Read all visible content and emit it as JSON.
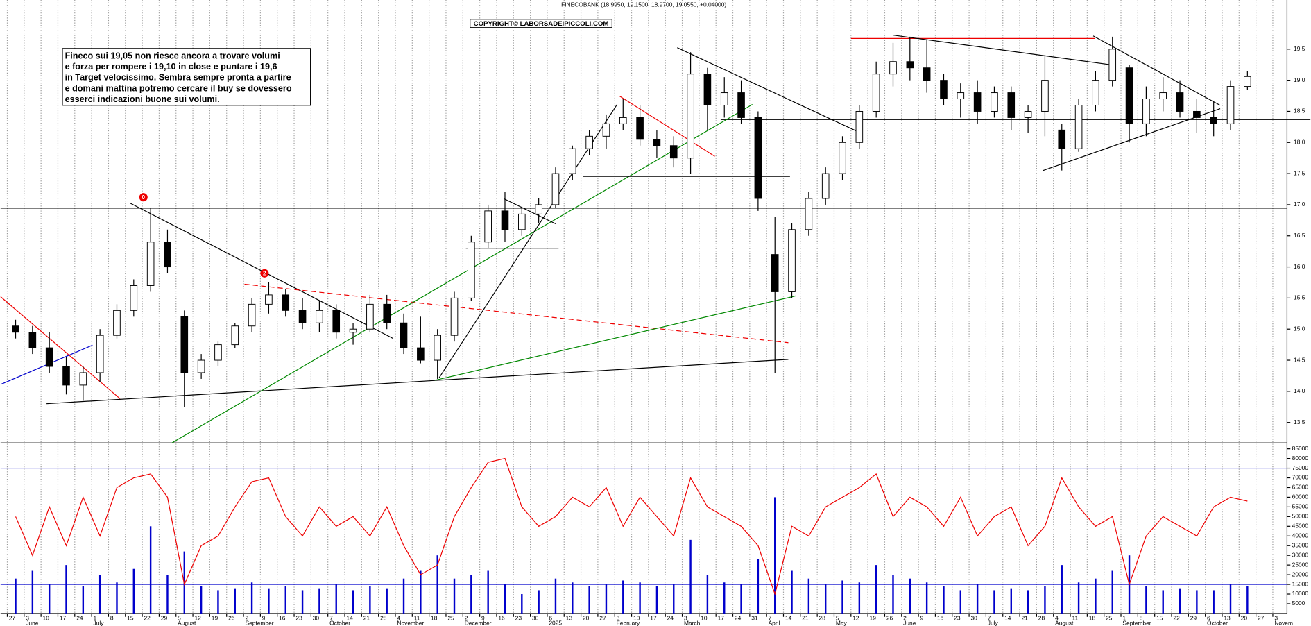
{
  "chart_data": [
    {
      "type": "candlestick",
      "title": "FINECOBANK (18.9950, 19.1500, 18.9700, 19.0550, +0.04000)",
      "watermark": "COPYRIGHT© LABORSADEIPICCOLI.COM",
      "annotation_lines": [
        "Fineco sui 19,05 non riesce ancora a trovare volumi",
        "e forza per rompere i 19,10 in close e puntare i 19,6",
        "in Target velocissimo. Sembra sempre pronta a partire",
        "e domani mattina potremo cercare il buy se dovessero",
        "esserci indicazioni buone sui volumi."
      ],
      "markers": [
        "0",
        "2"
      ],
      "categories": [
        "27",
        "3",
        "10",
        "17",
        "24",
        "1",
        "8",
        "15",
        "22",
        "29",
        "5",
        "12",
        "19",
        "26",
        "2",
        "9",
        "16",
        "23",
        "30",
        "7",
        "14",
        "21",
        "28",
        "4",
        "11",
        "18",
        "25",
        "2",
        "9",
        "16",
        "23",
        "30",
        "6",
        "13",
        "20",
        "27",
        "3",
        "10",
        "17",
        "24",
        "3",
        "10",
        "17",
        "24",
        "31",
        "7",
        "14",
        "21",
        "28",
        "5",
        "12",
        "19",
        "26",
        "2",
        "9",
        "16",
        "23",
        "30",
        "7",
        "14",
        "21",
        "28",
        "4",
        "11",
        "18",
        "25",
        "1",
        "8",
        "15",
        "22",
        "29",
        "6",
        "13",
        "20",
        "27",
        "3"
      ],
      "months": [
        null,
        "June",
        null,
        null,
        null,
        "July",
        null,
        null,
        null,
        null,
        "August",
        null,
        null,
        null,
        "September",
        null,
        null,
        null,
        null,
        "October",
        null,
        null,
        null,
        "November",
        null,
        null,
        null,
        "December",
        null,
        null,
        null,
        null,
        "2025",
        null,
        null,
        null,
        "February",
        null,
        null,
        null,
        "March",
        null,
        null,
        null,
        null,
        "April",
        null,
        null,
        null,
        "May",
        null,
        null,
        null,
        "June",
        null,
        null,
        null,
        null,
        "July",
        null,
        null,
        null,
        "August",
        null,
        null,
        null,
        "September",
        null,
        null,
        null,
        null,
        "October",
        null,
        null,
        null,
        "Novem"
      ],
      "open": [
        15.05,
        14.95,
        14.7,
        14.4,
        14.1,
        14.3,
        14.9,
        15.3,
        15.7,
        16.4,
        15.2,
        14.3,
        14.5,
        14.75,
        15.05,
        15.4,
        15.55,
        15.3,
        15.1,
        15.3,
        14.95,
        15.0,
        15.4,
        15.1,
        14.7,
        14.5,
        14.9,
        15.5,
        16.4,
        16.9,
        16.6,
        16.85,
        17.0,
        17.5,
        17.9,
        18.1,
        18.3,
        18.4,
        18.05,
        17.95,
        17.75,
        19.1,
        18.6,
        18.8,
        18.4,
        16.2,
        15.6,
        16.6,
        17.1,
        17.5,
        18.0,
        18.5,
        19.1,
        19.3,
        19.2,
        19.0,
        18.7,
        18.8,
        18.5,
        18.8,
        18.4,
        18.5,
        18.2,
        17.9,
        18.6,
        19.0,
        19.2,
        18.3,
        18.7,
        18.8,
        18.5,
        18.4,
        18.3,
        18.9,
        null,
        null
      ],
      "high": [
        15.15,
        15.05,
        14.95,
        14.55,
        14.4,
        15.0,
        15.4,
        15.8,
        16.95,
        16.6,
        15.3,
        14.6,
        14.8,
        15.1,
        15.5,
        15.75,
        15.65,
        15.5,
        15.45,
        15.4,
        15.1,
        15.55,
        15.55,
        15.25,
        15.2,
        15.0,
        15.6,
        16.5,
        17.0,
        17.2,
        16.95,
        17.1,
        17.6,
        17.95,
        18.2,
        18.45,
        18.7,
        18.6,
        18.2,
        18.1,
        19.45,
        19.2,
        19.05,
        19.0,
        18.5,
        16.8,
        16.7,
        17.2,
        17.6,
        18.1,
        18.6,
        19.3,
        19.6,
        19.7,
        19.65,
        19.1,
        18.95,
        19.0,
        18.9,
        18.9,
        18.6,
        19.4,
        18.3,
        18.7,
        19.15,
        19.7,
        19.25,
        18.9,
        19.05,
        19.0,
        18.7,
        18.65,
        19.0,
        19.15,
        null,
        null
      ],
      "low": [
        14.85,
        14.6,
        14.3,
        13.95,
        13.85,
        14.15,
        14.85,
        15.2,
        15.6,
        15.9,
        13.75,
        14.2,
        14.4,
        14.7,
        14.95,
        15.25,
        15.2,
        15.0,
        14.95,
        14.85,
        14.75,
        14.95,
        15.0,
        14.6,
        14.45,
        14.2,
        14.8,
        15.45,
        16.3,
        16.4,
        16.5,
        16.7,
        16.95,
        17.4,
        17.8,
        17.9,
        18.2,
        17.95,
        17.75,
        17.6,
        17.5,
        18.2,
        18.4,
        18.3,
        16.9,
        14.3,
        15.5,
        16.5,
        17.0,
        17.4,
        17.9,
        18.4,
        18.9,
        19.0,
        18.8,
        18.6,
        18.4,
        18.3,
        18.4,
        18.2,
        18.15,
        18.1,
        17.55,
        17.85,
        18.5,
        18.9,
        18.0,
        18.1,
        18.5,
        18.4,
        18.15,
        18.1,
        18.2,
        18.85,
        null,
        null
      ],
      "close": [
        14.95,
        14.7,
        14.4,
        14.1,
        14.3,
        14.9,
        15.3,
        15.7,
        16.4,
        16.0,
        14.3,
        14.5,
        14.75,
        15.05,
        15.4,
        15.55,
        15.3,
        15.1,
        15.3,
        14.95,
        15.0,
        15.4,
        15.1,
        14.7,
        14.5,
        14.9,
        15.5,
        16.4,
        16.9,
        16.6,
        16.85,
        17.0,
        17.5,
        17.9,
        18.1,
        18.3,
        18.4,
        18.05,
        17.95,
        17.75,
        19.1,
        18.6,
        18.8,
        18.4,
        17.1,
        15.6,
        16.6,
        17.1,
        17.5,
        18.0,
        18.5,
        19.1,
        19.3,
        19.2,
        19.0,
        18.7,
        18.8,
        18.5,
        18.8,
        18.4,
        18.5,
        19.0,
        17.9,
        18.6,
        19.0,
        19.5,
        18.3,
        18.7,
        18.8,
        18.5,
        18.4,
        18.3,
        18.9,
        19.06,
        null,
        null
      ],
      "ylim": [
        13.17,
        20.29
      ],
      "yticks": [
        13.5,
        {
          "value": 14,
          "label": "14.0"
        },
        14.5,
        {
          "value": 15,
          "label": "15.0"
        },
        15.5,
        {
          "value": 16,
          "label": "16.0"
        },
        16.5,
        {
          "value": 17,
          "label": "17.0"
        },
        17.5,
        {
          "value": 18,
          "label": "18.0"
        },
        18.5,
        {
          "value": 19,
          "label": "19.0"
        },
        19.5
      ]
    },
    {
      "type": "bar",
      "series": [
        {
          "name": "Volume",
          "color": "#0000cc",
          "values": [
            18000,
            22000,
            15000,
            25000,
            14000,
            20000,
            16000,
            23000,
            45000,
            20000,
            32000,
            14000,
            12000,
            13000,
            16000,
            13000,
            14000,
            12000,
            13000,
            15000,
            12000,
            14000,
            13000,
            18000,
            22000,
            30000,
            18000,
            20000,
            22000,
            15000,
            10000,
            12000,
            18000,
            16000,
            14000,
            15000,
            17000,
            16000,
            14000,
            15000,
            38000,
            20000,
            16000,
            15000,
            28000,
            60000,
            22000,
            18000,
            15000,
            17000,
            16000,
            25000,
            20000,
            18000,
            16000,
            14000,
            12000,
            15000,
            12000,
            13000,
            12000,
            14000,
            25000,
            16000,
            18000,
            22000,
            30000,
            14000,
            12000,
            13000,
            12000,
            12000,
            15000,
            14000,
            null,
            null
          ]
        },
        {
          "name": "Oscillator",
          "color": "#ee0000",
          "values": [
            50000,
            30000,
            55000,
            35000,
            60000,
            40000,
            65000,
            70000,
            72000,
            60000,
            15000,
            35000,
            40000,
            55000,
            68000,
            70000,
            50000,
            40000,
            55000,
            45000,
            50000,
            40000,
            55000,
            35000,
            20000,
            25000,
            50000,
            65000,
            78000,
            80000,
            55000,
            45000,
            50000,
            60000,
            55000,
            65000,
            45000,
            60000,
            50000,
            40000,
            70000,
            55000,
            50000,
            45000,
            35000,
            10000,
            45000,
            40000,
            55000,
            60000,
            65000,
            72000,
            50000,
            60000,
            55000,
            45000,
            60000,
            40000,
            50000,
            55000,
            35000,
            45000,
            70000,
            55000,
            45000,
            50000,
            15000,
            40000,
            50000,
            45000,
            40000,
            55000,
            60000,
            58000,
            null,
            null
          ]
        }
      ],
      "levels": [
        75000,
        15000
      ],
      "ylim": [
        0,
        88000
      ],
      "yticks": [
        5000,
        10000,
        15000,
        20000,
        25000,
        30000,
        35000,
        40000,
        45000,
        50000,
        55000,
        60000,
        65000,
        70000,
        75000,
        80000,
        85000
      ]
    }
  ]
}
